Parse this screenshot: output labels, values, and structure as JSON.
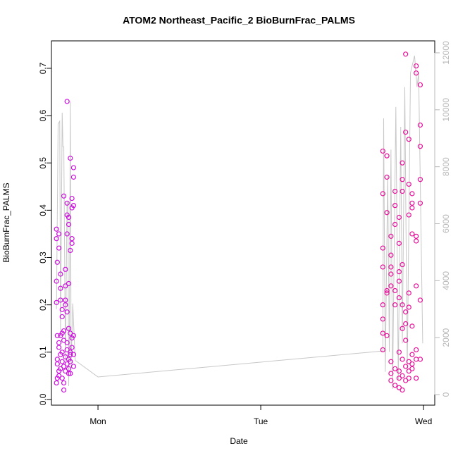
{
  "chart_data": {
    "type": "scatter",
    "title": "ATOM2 Northeast_Pacific_2 BioBurnFrac_PALMS",
    "xlabel": "Date",
    "ylabel": "BioBurnFrac_PALMS",
    "xlim": [
      0.714,
      3.069
    ],
    "xticks": [
      {
        "value": 1,
        "label": "Mon"
      },
      {
        "value": 2,
        "label": "Tue"
      },
      {
        "value": 3,
        "label": "Wed"
      }
    ],
    "ylim": [
      -0.012,
      0.758
    ],
    "yticks": [
      {
        "value": 0,
        "label": "0.0"
      },
      0.1,
      0.2,
      0.3,
      0.4,
      0.5,
      0.6,
      0.7
    ],
    "y2lim": [
      -371,
      12420
    ],
    "y2ticks": [
      0,
      2000,
      4000,
      6000,
      8000,
      10000,
      12000
    ],
    "series": [
      {
        "color": "#cc11dd",
        "x": [
          0.745,
          0.745,
          0.745,
          0.745,
          0.745,
          0.75,
          0.75,
          0.75,
          0.75,
          0.75,
          0.76,
          0.76,
          0.76,
          0.76,
          0.76,
          0.76,
          0.77,
          0.77,
          0.77,
          0.77,
          0.77,
          0.77,
          0.78,
          0.78,
          0.78,
          0.78,
          0.78,
          0.78,
          0.79,
          0.79,
          0.79,
          0.79,
          0.79,
          0.79,
          0.8,
          0.8,
          0.8,
          0.8,
          0.8,
          0.8,
          0.81,
          0.81,
          0.81,
          0.81,
          0.81,
          0.81,
          0.81,
          0.81,
          0.82,
          0.82,
          0.82,
          0.82,
          0.82,
          0.82,
          0.82,
          0.83,
          0.83,
          0.83,
          0.83,
          0.83,
          0.83,
          0.83,
          0.84,
          0.84,
          0.84,
          0.84,
          0.84,
          0.84,
          0.85,
          0.85,
          0.85,
          0.85,
          0.85,
          0.85
        ],
        "values": [
          0.25,
          0.205,
          0.34,
          0.36,
          0.035,
          0.29,
          0.085,
          0.135,
          0.075,
          0.045,
          0.12,
          0.11,
          0.32,
          0.35,
          0.06,
          0.05,
          0.265,
          0.235,
          0.21,
          0.135,
          0.065,
          0.095,
          0.1,
          0.08,
          0.14,
          0.19,
          0.175,
          0.045,
          0.43,
          0.145,
          0.035,
          0.02,
          0.07,
          0.125,
          0.275,
          0.24,
          0.2,
          0.21,
          0.09,
          0.06,
          0.415,
          0.39,
          0.63,
          0.35,
          0.185,
          0.12,
          0.075,
          0.105,
          0.15,
          0.085,
          0.065,
          0.055,
          0.37,
          0.385,
          0.245,
          0.51,
          0.315,
          0.14,
          0.1,
          0.055,
          0.095,
          0.08,
          0.425,
          0.405,
          0.34,
          0.33,
          0.13,
          0.11,
          0.47,
          0.49,
          0.41,
          0.135,
          0.095,
          0.07
        ]
      },
      {
        "color": "#e8109a",
        "x": [
          2.75,
          2.75,
          2.75,
          2.75,
          2.75,
          2.75,
          2.75,
          2.75,
          2.775,
          2.775,
          2.775,
          2.775,
          2.775,
          2.775,
          2.8,
          2.8,
          2.8,
          2.8,
          2.8,
          2.8,
          2.8,
          2.8,
          2.825,
          2.825,
          2.825,
          2.825,
          2.825,
          2.825,
          2.825,
          2.85,
          2.85,
          2.85,
          2.85,
          2.85,
          2.85,
          2.85,
          2.85,
          2.85,
          2.87,
          2.87,
          2.87,
          2.87,
          2.87,
          2.87,
          2.87,
          2.87,
          2.87,
          2.89,
          2.89,
          2.89,
          2.89,
          2.89,
          2.89,
          2.89,
          2.91,
          2.91,
          2.91,
          2.91,
          2.91,
          2.91,
          2.91,
          2.91,
          2.93,
          2.93,
          2.93,
          2.93,
          2.93,
          2.93,
          2.93,
          2.93,
          2.955,
          2.955,
          2.955,
          2.955,
          2.955,
          2.955,
          2.955,
          2.955,
          2.98,
          2.98,
          2.98,
          2.98,
          2.98,
          2.98,
          2.98
        ],
        "values": [
          0.28,
          0.32,
          0.525,
          0.435,
          0.2,
          0.14,
          0.105,
          0.17,
          0.515,
          0.47,
          0.395,
          0.135,
          0.23,
          0.225,
          0.345,
          0.305,
          0.28,
          0.265,
          0.24,
          0.08,
          0.055,
          0.04,
          0.37,
          0.44,
          0.41,
          0.23,
          0.2,
          0.065,
          0.03,
          0.385,
          0.33,
          0.27,
          0.25,
          0.215,
          0.1,
          0.06,
          0.045,
          0.025,
          0.465,
          0.44,
          0.5,
          0.285,
          0.2,
          0.15,
          0.085,
          0.05,
          0.02,
          0.73,
          0.565,
          0.185,
          0.16,
          0.125,
          0.07,
          0.04,
          0.55,
          0.455,
          0.39,
          0.225,
          0.195,
          0.08,
          0.06,
          0.045,
          0.435,
          0.415,
          0.405,
          0.35,
          0.155,
          0.095,
          0.075,
          0.065,
          0.705,
          0.69,
          0.345,
          0.335,
          0.24,
          0.105,
          0.085,
          0.045,
          0.665,
          0.58,
          0.535,
          0.465,
          0.415,
          0.21,
          0.085
        ]
      },
      {
        "type": "line",
        "axis": "y2",
        "color": "#c8c8c8",
        "x": [
          0.745,
          0.755,
          0.765,
          0.77,
          0.78,
          0.785,
          0.79,
          0.8,
          0.81,
          0.815,
          0.82,
          0.825,
          0.83,
          0.835,
          0.845,
          0.86,
          1.0,
          2.75,
          2.755,
          2.765,
          2.78,
          2.79,
          2.8,
          2.81,
          2.83,
          2.845,
          2.86,
          2.87,
          2.885,
          2.9,
          2.92,
          2.945,
          2.96,
          2.97,
          2.995
        ],
        "values": [
          3000,
          9500,
          9600,
          2000,
          9900,
          8700,
          8700,
          1000,
          6800,
          6600,
          300,
          2600,
          10300,
          1000,
          3200,
          1200,
          620,
          1530,
          9700,
          800,
          7700,
          1500,
          8600,
          200,
          10100,
          500,
          9400,
          1800,
          10800,
          800,
          11300,
          11900,
          10800,
          11300,
          1800
        ]
      }
    ]
  }
}
